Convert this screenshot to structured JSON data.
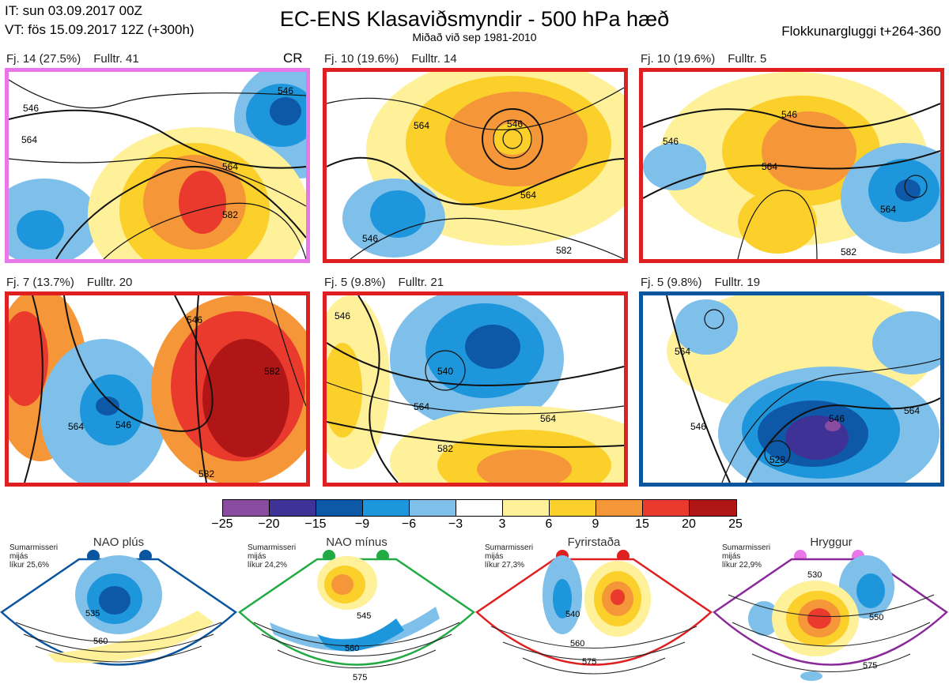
{
  "header": {
    "issue_time": "IT: sun 03.09.2017 00Z",
    "valid_time": "VT: fös 15.09.2017 12Z  (+300h)",
    "title": "EC-ENS Klasaviðsmyndir - 500 hPa hæð",
    "subtitle": "Miðað við sep 1981-2010",
    "window": "Flokkunargluggi t+264-360"
  },
  "panels": [
    {
      "caption_fj": "Fj. 14 (27.5%)",
      "caption_ful": "Fulltr. 41",
      "tag": "CR",
      "border": "#e878e8",
      "labels": [
        "546",
        "564",
        "582",
        "564",
        "546"
      ]
    },
    {
      "caption_fj": "Fj. 10 (19.6%)",
      "caption_ful": "Fulltr. 14",
      "tag": "",
      "border": "#e02020",
      "labels": [
        "546",
        "564",
        "564",
        "546",
        "582"
      ]
    },
    {
      "caption_fj": "Fj. 10 (19.6%)",
      "caption_ful": "Fulltr. 5",
      "tag": "",
      "border": "#e02020",
      "labels": [
        "546",
        "564",
        "564",
        "546",
        "582"
      ]
    },
    {
      "caption_fj": "Fj. 7 (13.7%)",
      "caption_ful": "Fulltr. 20",
      "tag": "",
      "border": "#e02020",
      "labels": [
        "546",
        "564",
        "546",
        "582",
        "582"
      ]
    },
    {
      "caption_fj": "Fj. 5 (9.8%)",
      "caption_ful": "Fulltr. 21",
      "tag": "",
      "border": "#e02020",
      "labels": [
        "546",
        "540",
        "564",
        "564",
        "582"
      ]
    },
    {
      "caption_fj": "Fj. 5 (9.8%)",
      "caption_ful": "Fulltr. 19",
      "tag": "",
      "border": "#0a55a0",
      "labels": [
        "546",
        "564",
        "546",
        "528",
        "564"
      ]
    }
  ],
  "colorbar": {
    "colors": [
      "#8a4ca0",
      "#3e3296",
      "#0e58a8",
      "#1e96dc",
      "#7ec0ea",
      "#ffffff",
      "#fff09a",
      "#fcd02a",
      "#f59638",
      "#ea3a2e",
      "#b01616"
    ],
    "ticks": [
      "−25",
      "−20",
      "−15",
      "−9",
      "−6",
      "−3",
      "3",
      "6",
      "9",
      "15",
      "20",
      "25"
    ]
  },
  "regimes": [
    {
      "name": "NAO plús",
      "note1": "Sumarmisseri",
      "note2": "mijás",
      "note3": "líkur 25,6%",
      "color": "#0a55a0",
      "labels": [
        "535",
        "560"
      ]
    },
    {
      "name": "NAO mínus",
      "note1": "Sumarmisseri",
      "note2": "mijás",
      "note3": "líkur 24,2%",
      "color": "#22aa44",
      "labels": [
        "545",
        "560",
        "575"
      ]
    },
    {
      "name": "Fyrirstaða",
      "note1": "Sumarmisseri",
      "note2": "mijás",
      "note3": "líkur 27,3%",
      "color": "#e02020",
      "labels": [
        "540",
        "560",
        "575"
      ]
    },
    {
      "name": "Hryggur",
      "note1": "Sumarmisseri",
      "note2": "mijás",
      "note3": "líkur 22,9%",
      "color": "#8a2a9a",
      "labels": [
        "530",
        "550",
        "575"
      ]
    }
  ]
}
